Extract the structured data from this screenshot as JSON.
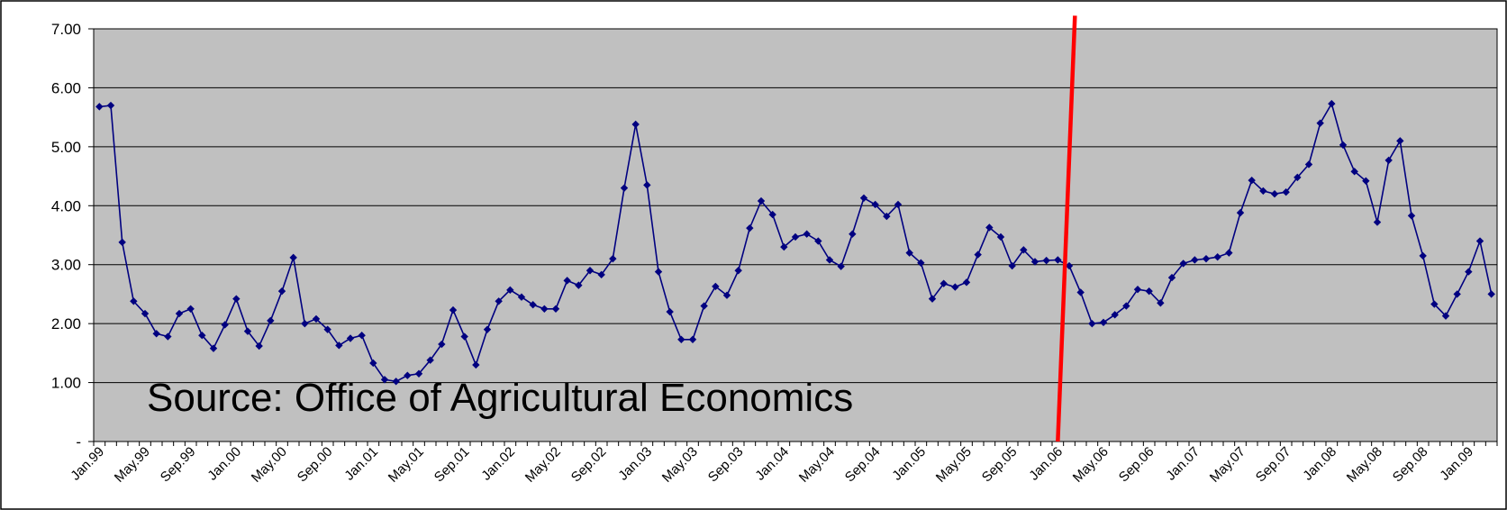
{
  "chart_data": {
    "type": "line",
    "title": "",
    "xlabel": "",
    "ylabel": "",
    "ylim": [
      0,
      7
    ],
    "y_ticks": [
      0,
      1,
      2,
      3,
      4,
      5,
      6,
      7
    ],
    "y_tick_labels": [
      "-",
      "1.00",
      "2.00",
      "3.00",
      "4.00",
      "5.00",
      "6.00",
      "7.00"
    ],
    "x_tick_labels": [
      "Jan.99",
      "May.99",
      "Sep.99",
      "Jan.00",
      "May.00",
      "Sep.00",
      "Jan.01",
      "May.01",
      "Sep.01",
      "Jan.02",
      "May.02",
      "Sep.02",
      "Jan.03",
      "May.03",
      "Sep.03",
      "Jan.04",
      "May.04",
      "Sep.04",
      "Jan.05",
      "May.05",
      "Sep.05",
      "Jan.06",
      "May.06",
      "Sep.06",
      "Jan.07",
      "May.07",
      "Sep.07",
      "Jan.08",
      "May.08",
      "Sep.08",
      "Jan.09"
    ],
    "x_tick_every_months": 4,
    "grid": "horizontal",
    "legend": "none",
    "colors": {
      "plot_background": "#c0c0c0",
      "series": "#000080",
      "marker_line": "#ff0000",
      "gridline": "#000000"
    },
    "series": [
      {
        "values": [
          5.68,
          5.7,
          3.38,
          2.38,
          2.17,
          1.83,
          1.78,
          2.17,
          2.25,
          1.8,
          1.58,
          1.98,
          2.42,
          1.87,
          1.62,
          2.05,
          2.55,
          3.12,
          2.0,
          2.08,
          1.9,
          1.63,
          1.75,
          1.8,
          1.33,
          1.05,
          1.02,
          1.12,
          1.15,
          1.38,
          1.65,
          2.23,
          1.78,
          1.3,
          1.9,
          2.38,
          2.57,
          2.45,
          2.32,
          2.25,
          2.25,
          2.73,
          2.65,
          2.9,
          2.83,
          3.1,
          4.3,
          5.38,
          4.35,
          2.88,
          2.2,
          1.73,
          1.73,
          2.3,
          2.63,
          2.48,
          2.9,
          3.62,
          4.08,
          3.85,
          3.3,
          3.47,
          3.52,
          3.4,
          3.08,
          2.97,
          3.52,
          4.13,
          4.02,
          3.82,
          4.02,
          3.2,
          3.03,
          2.42,
          2.68,
          2.62,
          2.7,
          3.17,
          3.63,
          3.47,
          2.98,
          3.25,
          3.05,
          3.07,
          3.08,
          2.98,
          2.53,
          2.0,
          2.02,
          2.15,
          2.3,
          2.58,
          2.55,
          2.35,
          2.78,
          3.02,
          3.08,
          3.1,
          3.13,
          3.2,
          3.88,
          4.43,
          4.25,
          4.2,
          4.23,
          4.48,
          4.7,
          5.4,
          5.73,
          5.03,
          4.58,
          4.42,
          3.72,
          4.77,
          5.1,
          3.83,
          3.15,
          2.33,
          2.13,
          2.5,
          2.88,
          3.4,
          2.5
        ]
      }
    ],
    "marker_line": {
      "description_months": [
        86,
        84.5
      ],
      "top_y": 7.1,
      "bottom_y": 0
    },
    "annotation": "Source: Office of Agricultural Economics"
  }
}
